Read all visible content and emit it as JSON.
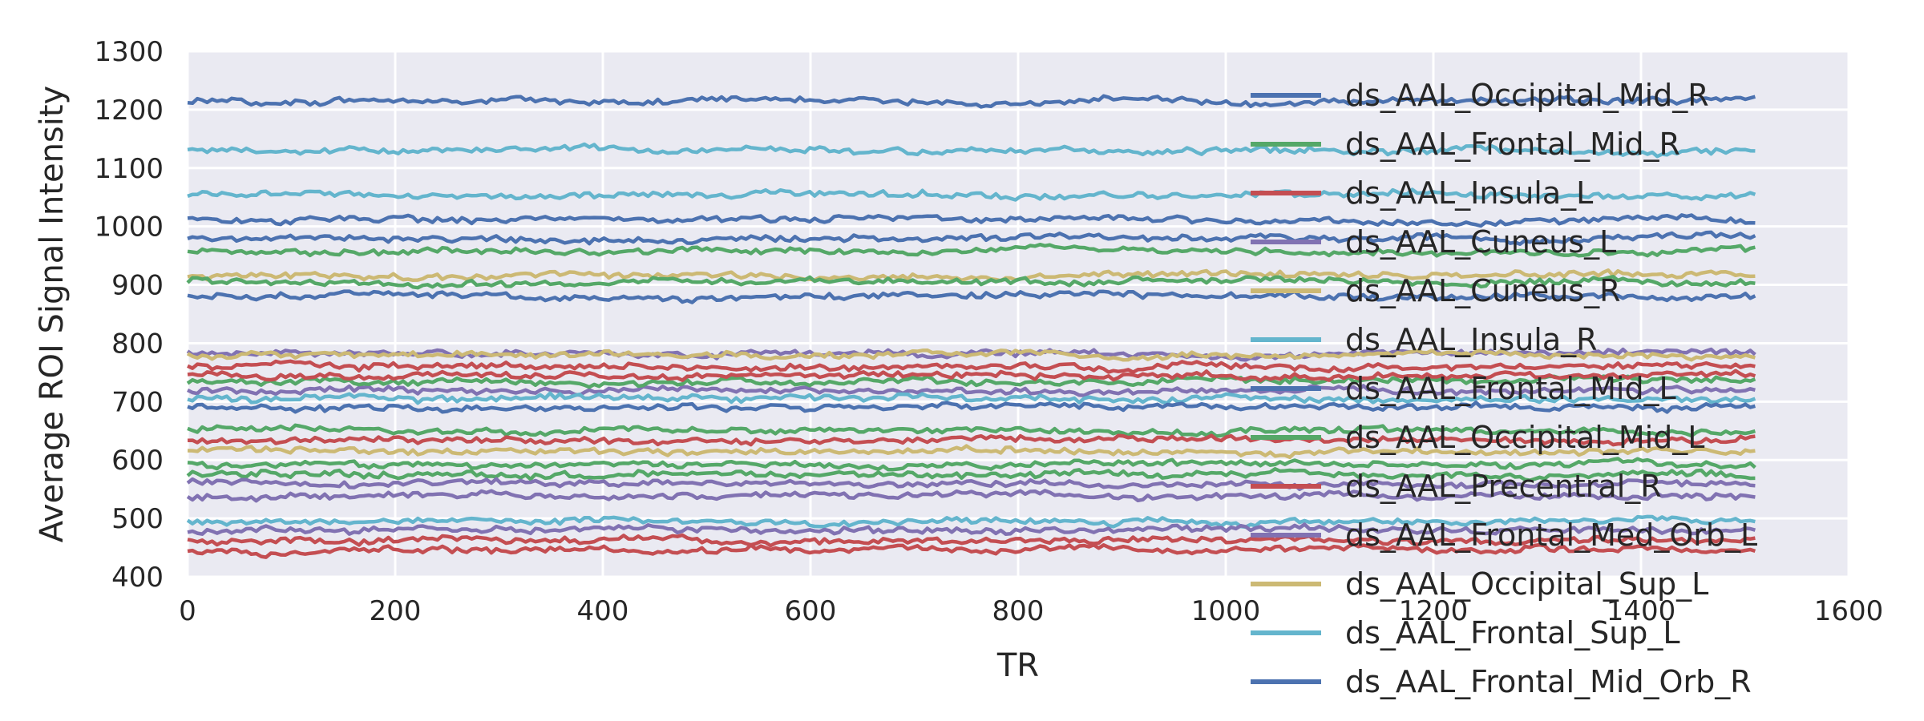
{
  "chart_data": {
    "type": "line",
    "xlabel": "TR",
    "ylabel": "Average ROI Signal Intensity",
    "xlim": [
      0,
      1600
    ],
    "ylim": [
      400,
      1300
    ],
    "x_range": [
      0,
      1510
    ],
    "xticks": [
      0,
      200,
      400,
      600,
      800,
      1000,
      1200,
      1400,
      1600
    ],
    "yticks": [
      400,
      500,
      600,
      700,
      800,
      900,
      1000,
      1100,
      1200,
      1300
    ],
    "xtick_labels": [
      "0",
      "200",
      "400",
      "600",
      "800",
      "1000",
      "1200",
      "1400",
      "1600"
    ],
    "ytick_labels": [
      "400",
      "500",
      "600",
      "700",
      "800",
      "900",
      "1000",
      "1100",
      "1200",
      "1300"
    ],
    "grid": true,
    "legend_position": "right",
    "background_color": "#eaeaf2",
    "grid_color": "#ffffff",
    "palette": [
      "#4c72b0",
      "#55a868",
      "#c44e52",
      "#8172b2",
      "#ccb974",
      "#64b5cd"
    ],
    "series": [
      {
        "name": "ds_AAL_Occipital_Mid_R",
        "mean": 1215,
        "color": "#4c72b0"
      },
      {
        "name": "ds_AAL_Frontal_Mid_R",
        "mean": 958,
        "color": "#55a868"
      },
      {
        "name": "ds_AAL_Insula_L",
        "mean": 462,
        "color": "#c44e52"
      },
      {
        "name": "ds_AAL_Cuneus_L",
        "mean": 782,
        "color": "#8172b2"
      },
      {
        "name": "ds_AAL_Cuneus_R",
        "mean": 915,
        "color": "#ccb974"
      },
      {
        "name": "ds_AAL_Insula_R",
        "mean": 1130,
        "color": "#64b5cd"
      },
      {
        "name": "ds_AAL_Frontal_Mid_L",
        "mean": 1010,
        "color": "#4c72b0"
      },
      {
        "name": "ds_AAL_Occipital_Mid_L",
        "mean": 905,
        "color": "#55a868"
      },
      {
        "name": "ds_AAL_Precentral_R",
        "mean": 760,
        "color": "#c44e52"
      },
      {
        "name": "ds_AAL_Frontal_Med_Orb_L",
        "mean": 720,
        "color": "#8172b2"
      },
      {
        "name": "ds_AAL_Occipital_Sup_L",
        "mean": 780,
        "color": "#ccb974"
      },
      {
        "name": "ds_AAL_Frontal_Sup_L",
        "mean": 1055,
        "color": "#64b5cd"
      },
      {
        "name": "ds_AAL_Frontal_Mid_Orb_R",
        "mean": 980,
        "color": "#4c72b0"
      },
      {
        "name": "",
        "mean": 880,
        "color": "#4c72b0"
      },
      {
        "name": "",
        "mean": 735,
        "color": "#55a868"
      },
      {
        "name": "",
        "mean": 705,
        "color": "#64b5cd"
      },
      {
        "name": "",
        "mean": 690,
        "color": "#4c72b0"
      },
      {
        "name": "",
        "mean": 650,
        "color": "#55a868"
      },
      {
        "name": "",
        "mean": 635,
        "color": "#c44e52"
      },
      {
        "name": "",
        "mean": 615,
        "color": "#ccb974"
      },
      {
        "name": "",
        "mean": 592,
        "color": "#55a868"
      },
      {
        "name": "",
        "mean": 575,
        "color": "#55a868"
      },
      {
        "name": "",
        "mean": 560,
        "color": "#8172b2"
      },
      {
        "name": "",
        "mean": 538,
        "color": "#8172b2"
      },
      {
        "name": "",
        "mean": 495,
        "color": "#64b5cd"
      },
      {
        "name": "",
        "mean": 480,
        "color": "#8172b2"
      },
      {
        "name": "",
        "mean": 445,
        "color": "#c44e52"
      },
      {
        "name": "",
        "mean": 745,
        "color": "#c44e52"
      }
    ]
  }
}
